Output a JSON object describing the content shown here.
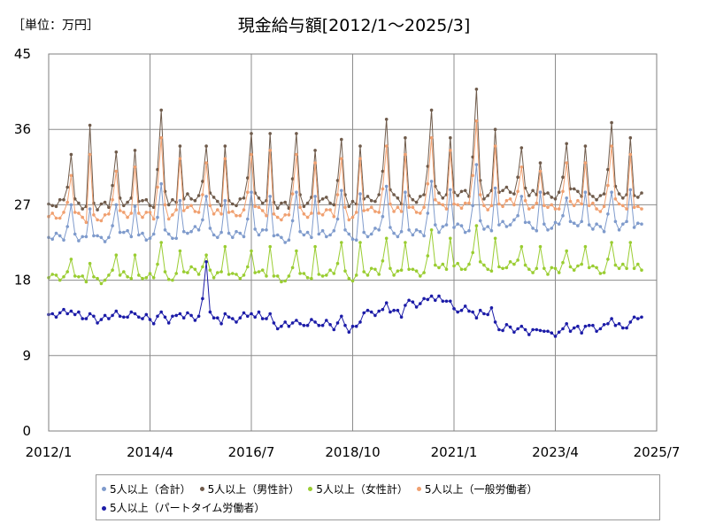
{
  "unit_label": "［単位：万円］",
  "title": "現金給与額[2012/1～2025/3]",
  "chart_data": {
    "type": "line",
    "title": "現金給与額[2012/1～2025/3]",
    "xlabel": "",
    "ylabel": "［単位：万円］",
    "ylim": [
      0,
      45
    ],
    "yticks": [
      "0",
      "9",
      "18",
      "27",
      "36",
      "45"
    ],
    "xlim": [
      "2012/1",
      "2025/7"
    ],
    "xticks": [
      "2012/1",
      "2014/4",
      "2016/7",
      "2018/10",
      "2021/1",
      "2023/4",
      "2025/7"
    ],
    "grid": true,
    "legend": "bottom",
    "series": [
      {
        "name": "5人以上（合計）",
        "color": "#7f9bcc",
        "baseline": [
          23.0,
          23.2,
          23.3,
          23.7,
          23.5,
          23.2,
          23.4,
          23.6,
          23.9,
          24.2,
          24.5,
          24.6,
          24.5,
          24.2,
          24.4,
          25.2,
          25.7,
          25.8
        ],
        "summer_bonus": [
          27.0,
          27.0,
          29.5,
          28.0,
          28.5,
          28.5,
          28.7,
          29.2,
          29.8,
          31.8,
          28.0,
          27.8,
          28.5,
          29.5,
          29.5,
          30.0,
          31.0,
          28.0
        ],
        "winter_bonus": [
          26.5,
          26.8,
          27.5,
          27.5,
          28.0,
          28.0,
          28.3,
          28.5,
          28.8,
          29.0,
          28.5,
          28.5,
          28.8,
          29.0,
          30.0,
          31.0,
          31.0,
          28.0
        ]
      },
      {
        "name": "5人以上（男性計）",
        "color": "#6f5b4b",
        "baseline": [
          27.0,
          27.1,
          27.3,
          27.6,
          27.4,
          27.2,
          27.3,
          27.6,
          28.0,
          28.4,
          28.4,
          28.2,
          28.2,
          28.0,
          28.2,
          29.0,
          29.6,
          29.7
        ],
        "summer_bonus": [
          33.0,
          33.3,
          38.3,
          34.0,
          35.5,
          35.5,
          34.8,
          37.2,
          38.3,
          40.8,
          33.8,
          34.3,
          36.8,
          35.5,
          37.6,
          33.8,
          37.8,
          28.0
        ],
        "winter_bonus": [
          36.5,
          33.5,
          34.0,
          34.0,
          35.5,
          33.5,
          34.0,
          35.0,
          35.0,
          36.0,
          32.0,
          34.0,
          35.0,
          35.5,
          35.0,
          35.0,
          37.5,
          28.0
        ]
      },
      {
        "name": "5人以上（女性計）",
        "color": "#9acd32",
        "baseline": [
          18.2,
          18.3,
          18.5,
          18.9,
          18.6,
          18.4,
          18.6,
          18.9,
          19.2,
          19.6,
          19.5,
          19.3,
          19.4,
          19.3,
          19.6,
          20.3,
          20.8,
          21.0
        ],
        "summer_bonus": [
          20.5,
          21.0,
          22.5,
          21.0,
          21.5,
          21.5,
          22.5,
          23.0,
          24.0,
          24.5,
          22.0,
          21.5,
          22.5,
          23.0,
          23.5,
          24.0,
          25.5,
          21.0
        ],
        "winter_bonus": [
          20.0,
          21.0,
          21.5,
          22.0,
          22.0,
          22.0,
          22.5,
          22.5,
          23.0,
          23.0,
          22.0,
          22.0,
          22.5,
          23.0,
          23.5,
          24.0,
          25.0,
          21.0
        ]
      },
      {
        "name": "5人以上（一般労働者）",
        "color": "#f0a070",
        "baseline": [
          25.5,
          25.7,
          25.9,
          26.2,
          26.0,
          25.8,
          25.9,
          26.2,
          26.6,
          27.0,
          27.0,
          26.8,
          26.8,
          26.6,
          26.9,
          27.6,
          28.2,
          28.5
        ],
        "summer_bonus": [
          30.5,
          31.0,
          35.0,
          32.0,
          33.0,
          33.0,
          32.5,
          34.0,
          35.0,
          37.0,
          31.5,
          32.0,
          34.0,
          33.5,
          35.0,
          32.5,
          36.0,
          27.0
        ],
        "winter_bonus": [
          33.0,
          31.5,
          32.5,
          32.5,
          33.5,
          32.0,
          32.5,
          33.0,
          33.5,
          34.0,
          31.0,
          32.0,
          33.0,
          33.5,
          33.5,
          33.5,
          36.5,
          27.0
        ]
      },
      {
        "name": "5人以上（パートタイム労働者）",
        "color": "#1c1ca8",
        "baseline": [
          13.8,
          13.6,
          13.5,
          13.4,
          13.5,
          12.8,
          12.5,
          14.0,
          15.5,
          14.5,
          12.0,
          11.8,
          12.5,
          13.5,
          14.5,
          15.0,
          16.0,
          15.2
        ],
        "summer_bonus": [
          14.3,
          14.3,
          14.2,
          20.2,
          14.0,
          13.2,
          13.7,
          15.3,
          16.1,
          13.5,
          12.5,
          12.8,
          13.4,
          13.9,
          15.0,
          15.3,
          17.5,
          15.0
        ],
        "winter_bonus": [
          14.0,
          14.0,
          14.0,
          14.0,
          14.0,
          13.0,
          13.0,
          15.0,
          15.5,
          13.0,
          12.0,
          12.5,
          13.0,
          13.5,
          14.5,
          15.5,
          16.5,
          15.0
        ]
      }
    ]
  }
}
